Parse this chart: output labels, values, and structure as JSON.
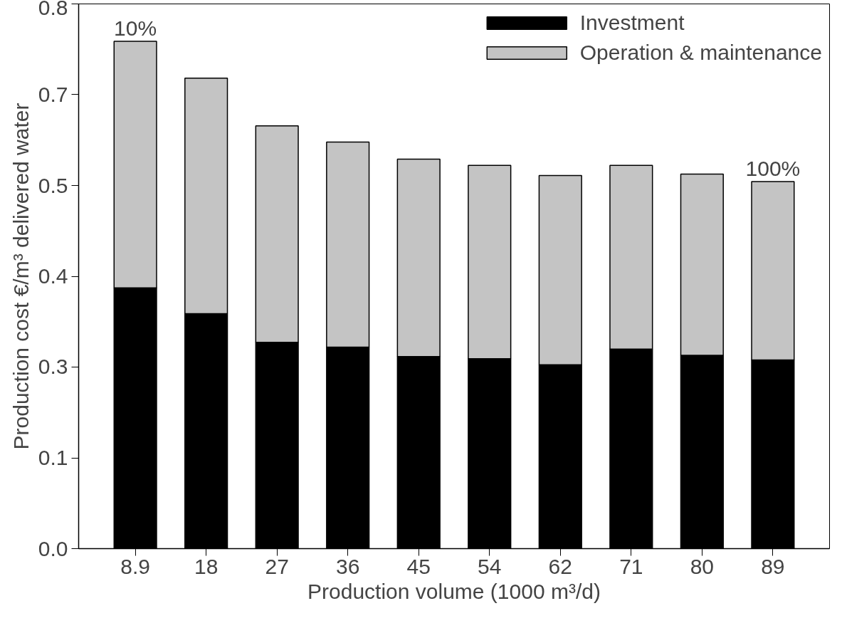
{
  "chart_data": {
    "type": "bar",
    "stacked": true,
    "xlabel": "Production volume (1000 m³/d)",
    "ylabel": "Production cost €/m³ delivered water",
    "categories": [
      "8.9",
      "18",
      "27",
      "36",
      "45",
      "54",
      "62",
      "71",
      "80",
      "89"
    ],
    "series": [
      {
        "name": "Investment",
        "color": "#000000",
        "values": [
          0.383,
          0.345,
          0.303,
          0.296,
          0.282,
          0.279,
          0.27,
          0.293,
          0.284,
          0.277
        ]
      },
      {
        "name": "Operation & maintenance",
        "color": "#c4c4c4",
        "values": [
          0.362,
          0.346,
          0.318,
          0.301,
          0.29,
          0.284,
          0.278,
          0.27,
          0.266,
          0.262
        ]
      }
    ],
    "ylim": [
      0,
      0.8
    ],
    "yticks": [
      {
        "value": 0,
        "label": "0.0"
      },
      {
        "value": 0.1333,
        "label": "0.1"
      },
      {
        "value": 0.2667,
        "label": "0.3"
      },
      0.4,
      {
        "value": 0.5333,
        "label": "0.5"
      },
      {
        "value": 0.6667,
        "label": "0.7"
      },
      0.8
    ],
    "annotations": [
      {
        "text": "10%",
        "x": "8.9",
        "y": 0.745
      },
      {
        "text": "100%",
        "x": "89",
        "y": 0.539
      }
    ],
    "legend": "top right",
    "grid": false
  }
}
